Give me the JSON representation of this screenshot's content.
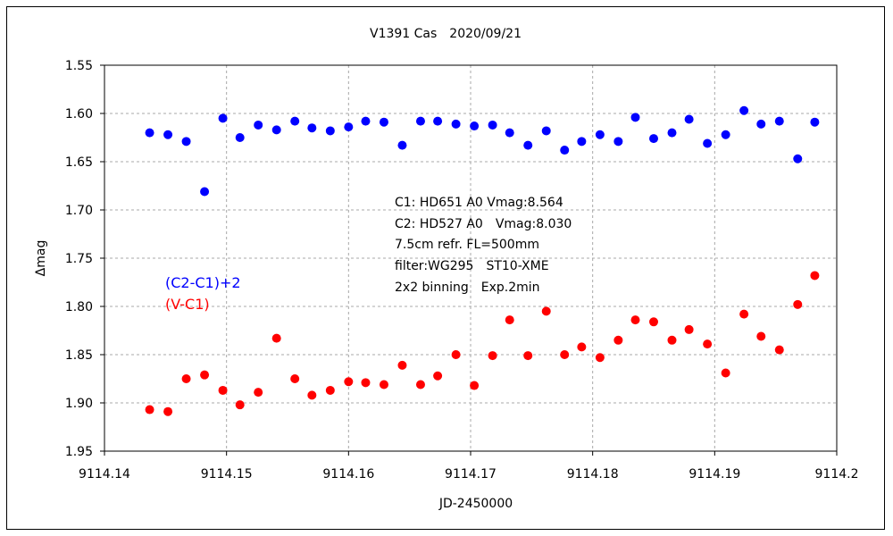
{
  "chart_data": {
    "type": "scatter",
    "title": "V1391 Cas　2020/09/21",
    "xlabel": "JD-2450000",
    "ylabel": "Δmag",
    "xlim": [
      9114.14,
      9114.2
    ],
    "ylim": [
      1.55,
      1.95
    ],
    "y_inverted": true,
    "grid": true,
    "x_ticks": [
      9114.14,
      9114.15,
      9114.16,
      9114.17,
      9114.18,
      9114.19,
      9114.2
    ],
    "x_tick_labels": [
      "9114.14",
      "9114.15",
      "9114.16",
      "9114.17",
      "9114.18",
      "9114.19",
      "9114.2"
    ],
    "y_ticks": [
      1.55,
      1.6,
      1.65,
      1.7,
      1.75,
      1.8,
      1.85,
      1.9,
      1.95
    ],
    "y_tick_labels": [
      "1.55",
      "1.60",
      "1.65",
      "1.70",
      "1.75",
      "1.80",
      "1.85",
      "1.90",
      "1.95"
    ],
    "annotations": [
      "C1: HD651 A0 Vmag:8.564",
      "C2: HD527 A0　Vmag:8.030",
      "7.5cm refr. FL=500mm",
      "filter:WG295　ST10-XME",
      "2x2 binning　Exp.2min"
    ],
    "series": [
      {
        "name": "(C2-C1)+2",
        "color": "#0000ff",
        "x": [
          9114.1437,
          9114.1452,
          9114.1467,
          9114.1482,
          9114.1497,
          9114.1511,
          9114.1526,
          9114.1541,
          9114.1556,
          9114.157,
          9114.1585,
          9114.16,
          9114.1614,
          9114.1629,
          9114.1644,
          9114.1659,
          9114.1673,
          9114.1688,
          9114.1703,
          9114.1718,
          9114.1732,
          9114.1747,
          9114.1762,
          9114.1777,
          9114.1791,
          9114.1806,
          9114.1821,
          9114.1835,
          9114.185,
          9114.1865,
          9114.1879,
          9114.1894,
          9114.1909,
          9114.1924,
          9114.1938,
          9114.1953,
          9114.1968,
          9114.1982
        ],
        "y": [
          1.62,
          1.622,
          1.629,
          1.681,
          1.605,
          1.625,
          1.612,
          1.617,
          1.608,
          1.615,
          1.618,
          1.614,
          1.608,
          1.609,
          1.633,
          1.608,
          1.608,
          1.611,
          1.613,
          1.612,
          1.62,
          1.633,
          1.618,
          1.638,
          1.629,
          1.622,
          1.629,
          1.604,
          1.626,
          1.62,
          1.606,
          1.631,
          1.622,
          1.597,
          1.611,
          1.608,
          1.647,
          1.609
        ]
      },
      {
        "name": "(V-C1)",
        "color": "#ff0000",
        "x": [
          9114.1437,
          9114.1452,
          9114.1467,
          9114.1482,
          9114.1497,
          9114.1511,
          9114.1526,
          9114.1541,
          9114.1556,
          9114.157,
          9114.1585,
          9114.16,
          9114.1614,
          9114.1629,
          9114.1644,
          9114.1659,
          9114.1673,
          9114.1688,
          9114.1703,
          9114.1718,
          9114.1732,
          9114.1747,
          9114.1762,
          9114.1777,
          9114.1791,
          9114.1806,
          9114.1821,
          9114.1835,
          9114.185,
          9114.1865,
          9114.1879,
          9114.1894,
          9114.1909,
          9114.1924,
          9114.1938,
          9114.1953,
          9114.1968,
          9114.1982
        ],
        "y": [
          1.907,
          1.909,
          1.875,
          1.871,
          1.887,
          1.902,
          1.889,
          1.833,
          1.875,
          1.892,
          1.887,
          1.878,
          1.879,
          1.881,
          1.861,
          1.881,
          1.872,
          1.85,
          1.882,
          1.851,
          1.814,
          1.851,
          1.805,
          1.85,
          1.842,
          1.853,
          1.835,
          1.814,
          1.816,
          1.835,
          1.824,
          1.839,
          1.869,
          1.808,
          1.831,
          1.845,
          1.798,
          1.768
        ]
      }
    ]
  }
}
